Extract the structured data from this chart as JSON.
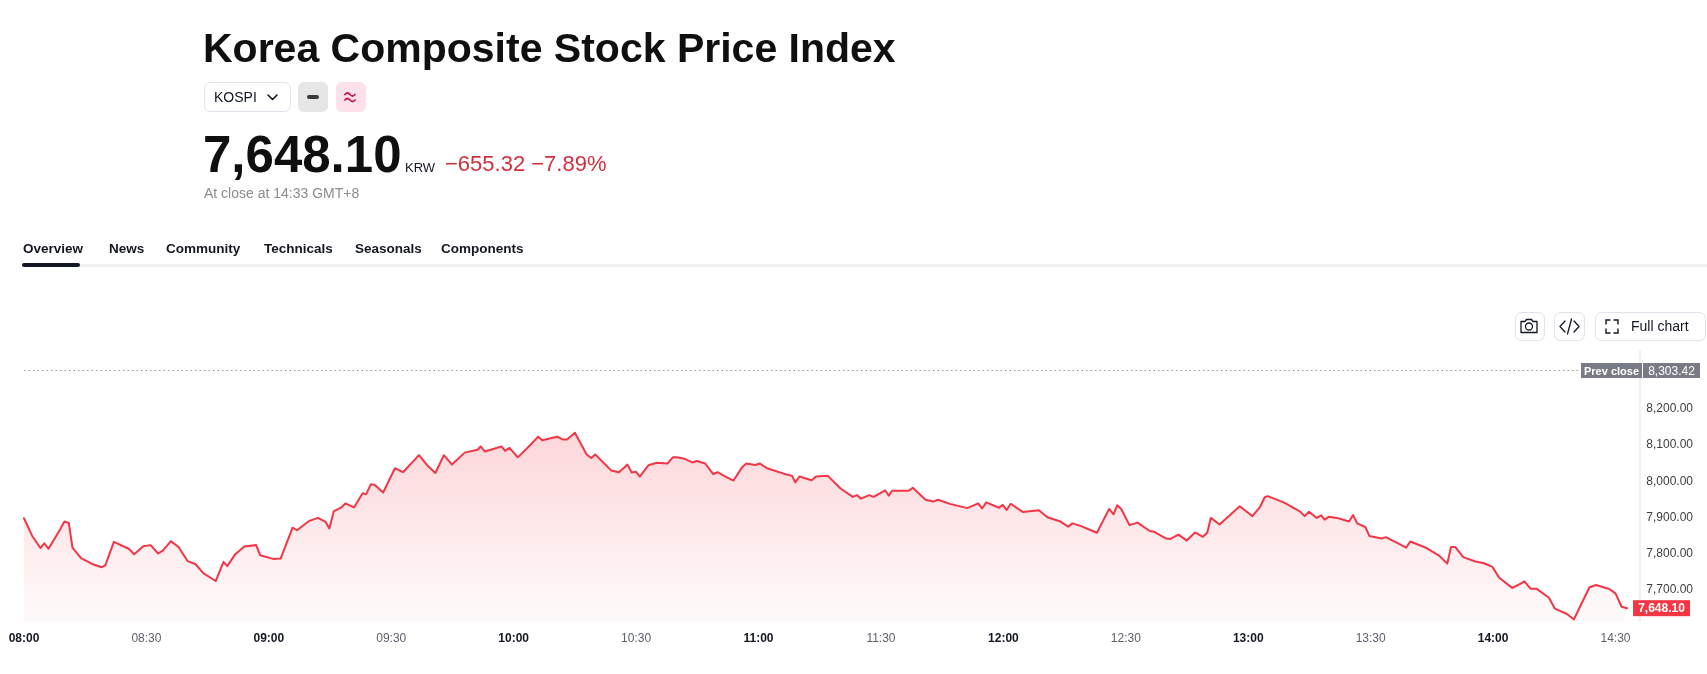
{
  "chart_data": {
    "type": "area",
    "title": "Korea Composite Stock Price Index",
    "annotations": [
      "KOSPI",
      "7,648.10",
      "KRW",
      "−655.32 −7.89%",
      "At close at 14:33 GMT+8",
      "Overview",
      "News",
      "Community",
      "Technicals",
      "Seasonals",
      "Components",
      "Full chart",
      "8,303.42",
      {
        "text": "7,648.10",
        "x": 14.547,
        "y": 7648.1
      }
    ],
    "color": "#f23645",
    "x": [
      8,
      8.033,
      8.067,
      8.083,
      8.1,
      8.148,
      8.165,
      8.183,
      8.198,
      8.233,
      8.278,
      8.318,
      8.332,
      8.367,
      8.428,
      8.45,
      8.487,
      8.517,
      8.548,
      8.567,
      8.6,
      8.632,
      8.668,
      8.7,
      8.732,
      8.783,
      8.815,
      8.83,
      8.863,
      8.9,
      8.948,
      8.965,
      9.017,
      9.048,
      9.097,
      9.115,
      9.163,
      9.2,
      9.232,
      9.247,
      9.265,
      9.298,
      9.313,
      9.348,
      9.383,
      9.397,
      9.417,
      9.433,
      9.467,
      9.515,
      9.548,
      9.613,
      9.65,
      9.68,
      9.715,
      9.748,
      9.8,
      9.852,
      9.865,
      9.883,
      9.95,
      9.965,
      9.983,
      10.017,
      10.068,
      10.1,
      10.117,
      10.177,
      10.202,
      10.218,
      10.25,
      10.298,
      10.317,
      10.333,
      10.398,
      10.43,
      10.465,
      10.482,
      10.5,
      10.515,
      10.55,
      10.585,
      10.628,
      10.65,
      10.665,
      10.698,
      10.73,
      10.748,
      10.782,
      10.815,
      10.833,
      10.865,
      10.898,
      10.933,
      10.95,
      10.987,
      11.005,
      11.035,
      11.103,
      11.137,
      11.15,
      11.167,
      11.217,
      11.235,
      11.283,
      11.335,
      11.385,
      11.402,
      11.418,
      11.452,
      11.47,
      11.517,
      11.532,
      11.545,
      11.613,
      11.63,
      11.682,
      11.713,
      11.733,
      11.785,
      11.853,
      11.897,
      11.913,
      11.93,
      11.982,
      11.997,
      12.013,
      12.03,
      12.08,
      12.145,
      12.18,
      12.23,
      12.265,
      12.282,
      12.315,
      12.382,
      12.432,
      12.45,
      12.465,
      12.482,
      12.515,
      12.548,
      12.598,
      12.615,
      12.665,
      12.682,
      12.715,
      12.748,
      12.783,
      12.815,
      12.833,
      12.847,
      12.883,
      12.965,
      12.998,
      13.017,
      13.048,
      13.067,
      13.08,
      13.147,
      13.213,
      13.23,
      13.248,
      13.28,
      13.298,
      13.312,
      13.328,
      13.362,
      13.412,
      13.428,
      13.445,
      13.478,
      13.495,
      13.545,
      13.562,
      13.612,
      13.645,
      13.662,
      13.728,
      13.778,
      13.813,
      13.828,
      13.845,
      13.878,
      13.928,
      13.963,
      13.997,
      14.025,
      14.078,
      14.102,
      14.128,
      14.153,
      14.177,
      14.228,
      14.252,
      14.302,
      14.33,
      14.393,
      14.42,
      14.475,
      14.5,
      14.525,
      14.547
    ],
    "values": [
      7896,
      7848,
      7814,
      7827,
      7812,
      7866,
      7887,
      7883,
      7815,
      7786,
      7770,
      7761,
      7766,
      7831,
      7812,
      7797,
      7819,
      7822,
      7799,
      7807,
      7833,
      7816,
      7778,
      7770,
      7745,
      7723,
      7776,
      7764,
      7797,
      7818,
      7822,
      7794,
      7784,
      7785,
      7870,
      7863,
      7888,
      7897,
      7886,
      7868,
      7915,
      7927,
      7937,
      7926,
      7965,
      7962,
      7990,
      7988,
      7967,
      8034,
      8023,
      8070,
      8040,
      8021,
      8070,
      8044,
      8077,
      8085,
      8094,
      8080,
      8094,
      8082,
      8090,
      8064,
      8098,
      8121,
      8111,
      8121,
      8113,
      8113,
      8132,
      8072,
      8062,
      8072,
      8028,
      8023,
      8044,
      8022,
      8024,
      8011,
      8042,
      8049,
      8047,
      8064,
      8064,
      8060,
      8050,
      8054,
      8047,
      8018,
      8023,
      8011,
      8000,
      8037,
      8047,
      8043,
      8047,
      8034,
      8019,
      8013,
      7995,
      8011,
      8001,
      8011,
      8013,
      7978,
      7955,
      7960,
      7950,
      7960,
      7955,
      7973,
      7958,
      7972,
      7972,
      7980,
      7947,
      7942,
      7947,
      7935,
      7924,
      7937,
      7923,
      7940,
      7925,
      7933,
      7919,
      7936,
      7913,
      7918,
      7899,
      7888,
      7873,
      7882,
      7875,
      7856,
      7922,
      7907,
      7932,
      7921,
      7877,
      7884,
      7861,
      7859,
      7840,
      7839,
      7851,
      7835,
      7857,
      7845,
      7857,
      7897,
      7879,
      7929,
      7912,
      7902,
      7927,
      7954,
      7957,
      7939,
      7914,
      7902,
      7914,
      7897,
      7904,
      7892,
      7900,
      7897,
      7887,
      7905,
      7882,
      7872,
      7847,
      7840,
      7844,
      7827,
      7815,
      7832,
      7814,
      7794,
      7771,
      7817,
      7817,
      7789,
      7777,
      7772,
      7762,
      7732,
      7704,
      7712,
      7722,
      7702,
      7702,
      7677,
      7647,
      7632,
      7617,
      7705,
      7712,
      7701,
      7689,
      7652,
      7648.1
    ],
    "xlim": [
      8,
      14.6
    ],
    "xticks": [
      {
        "value": 8,
        "label": "08:00"
      },
      {
        "value": 8.5,
        "label": "08:30"
      },
      {
        "value": 9,
        "label": "09:00"
      },
      {
        "value": 9.5,
        "label": "09:30"
      },
      {
        "value": 10,
        "label": "10:00"
      },
      {
        "value": 10.5,
        "label": "10:30"
      },
      {
        "value": 11,
        "label": "11:00"
      },
      {
        "value": 11.5,
        "label": "11:30"
      },
      {
        "value": 12,
        "label": "12:00"
      },
      {
        "value": 12.5,
        "label": "12:30"
      },
      {
        "value": 13,
        "label": "13:00"
      },
      {
        "value": 13.5,
        "label": "13:30"
      },
      {
        "value": 14,
        "label": "14:00"
      },
      {
        "value": 14.5,
        "label": "14:30"
      }
    ],
    "ylim": [
      7610,
      8360
    ],
    "yticks": [
      {
        "value": 7700,
        "label": "7,700.00"
      },
      {
        "value": 7800,
        "label": "7,800.00"
      },
      {
        "value": 7900,
        "label": "7,900.00"
      },
      {
        "value": 8000,
        "label": "8,000.00"
      },
      {
        "value": 8100,
        "label": "8,100.00"
      },
      {
        "value": 8200,
        "label": "8,200.00"
      }
    ],
    "ref_lines": [
      {
        "axis": "y",
        "value": 8303.42,
        "label": "Prev close",
        "color": "#9598a1",
        "line_style": "dotted"
      }
    ]
  }
}
